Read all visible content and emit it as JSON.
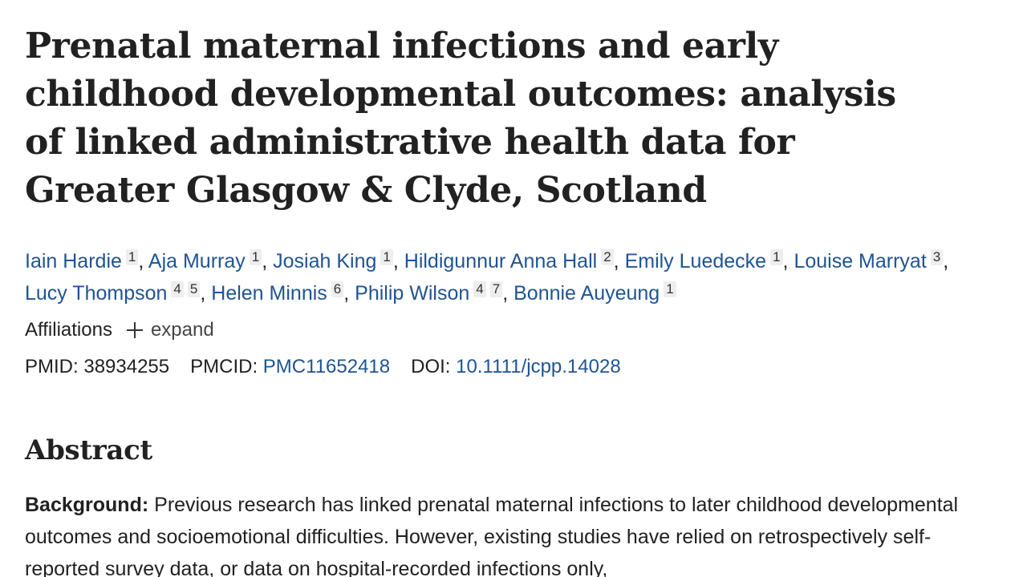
{
  "article": {
    "title": "Prenatal maternal infections and early childhood developmental outcomes: analysis of linked administrative health data for Greater Glasgow & Clyde, Scotland"
  },
  "authors": [
    {
      "name": "Iain Hardie",
      "affiliations": [
        "1"
      ]
    },
    {
      "name": "Aja Murray",
      "affiliations": [
        "1"
      ]
    },
    {
      "name": "Josiah King",
      "affiliations": [
        "1"
      ]
    },
    {
      "name": "Hildigunnur Anna Hall",
      "affiliations": [
        "2"
      ]
    },
    {
      "name": "Emily Luedecke",
      "affiliations": [
        "1"
      ]
    },
    {
      "name": "Louise Marryat",
      "affiliations": [
        "3"
      ]
    },
    {
      "name": "Lucy Thompson",
      "affiliations": [
        "4",
        "5"
      ]
    },
    {
      "name": "Helen Minnis",
      "affiliations": [
        "6"
      ]
    },
    {
      "name": "Philip Wilson",
      "affiliations": [
        "4",
        "7"
      ]
    },
    {
      "name": "Bonnie Auyeung",
      "affiliations": [
        "1"
      ]
    }
  ],
  "affiliations": {
    "label": "Affiliations",
    "expand_label": "expand",
    "expand_icon": "plus-icon"
  },
  "identifiers": {
    "pmid_label": "PMID:",
    "pmid_value": "38934255",
    "pmcid_label": "PMCID:",
    "pmcid_value": "PMC11652418",
    "doi_label": "DOI:",
    "doi_value": "10.1111/jcpp.14028"
  },
  "abstract": {
    "heading": "Abstract",
    "background_label": "Background:",
    "background_text": "Previous research has linked prenatal maternal infections to later childhood developmental outcomes and socioemotional difficulties. However, existing studies have relied on retrospectively self-reported survey data, or data on hospital-recorded infections only,"
  },
  "colors": {
    "link": "#205493",
    "text": "#212121",
    "badge_bg": "#eeeeee"
  }
}
